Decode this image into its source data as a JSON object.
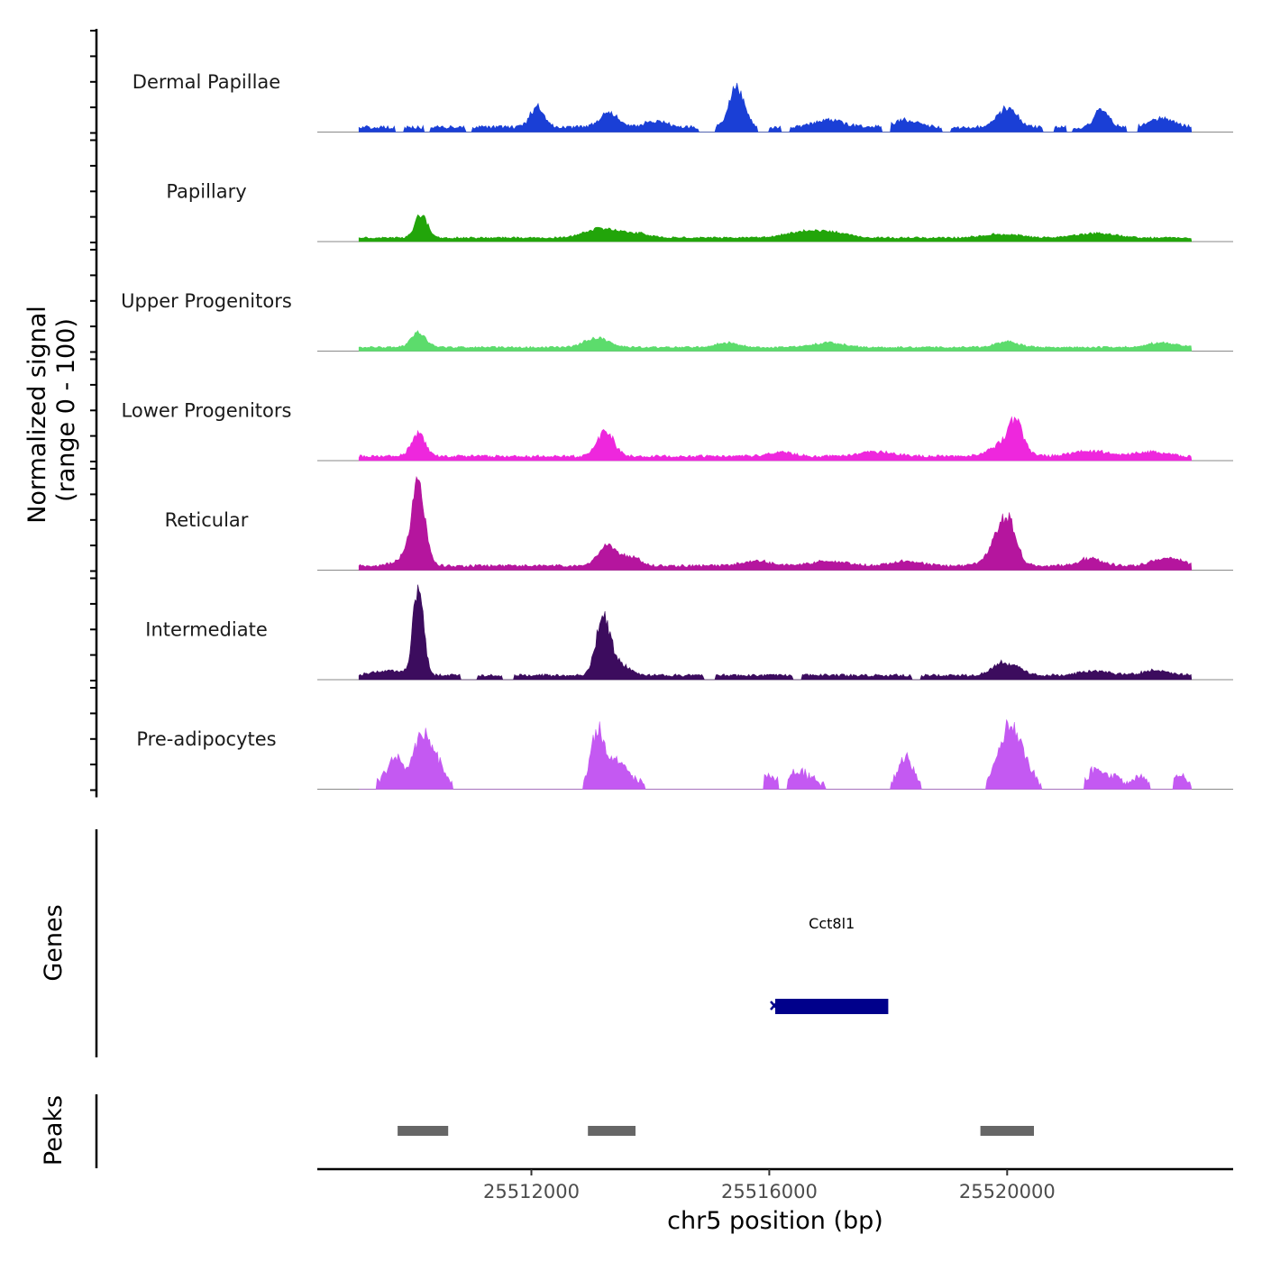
{
  "chart_data": {
    "type": "area",
    "title": "",
    "region": {
      "chromosome": "chr5",
      "start": 25508400,
      "end": 25523800
    },
    "coverage": {
      "ylabel_line1": "Normalized signal",
      "ylabel_line2": "(range 0 - 100)",
      "ylim": [
        0,
        100
      ],
      "x_start": 25509100,
      "x_end": 25523100,
      "tracks": [
        {
          "name": "Dermal Papillae",
          "color": "#1A3FD6",
          "peaks": [
            [
              25512100,
              22,
              120
            ],
            [
              25513300,
              16,
              150
            ],
            [
              25515450,
              42,
              130
            ],
            [
              25520000,
              22,
              160
            ],
            [
              25521600,
              20,
              120
            ],
            [
              25522600,
              10,
              200
            ],
            [
              25517000,
              8,
              250
            ],
            [
              25518300,
              8,
              200
            ],
            [
              25514100,
              6,
              200
            ]
          ],
          "baseline": 3,
          "noise": 4,
          "gaps": [
            [
              25509700,
              25509850
            ],
            [
              25510200,
              25510300
            ],
            [
              25510900,
              25511000
            ],
            [
              25514800,
              25515100
            ],
            [
              25515800,
              25516000
            ],
            [
              25516200,
              25516350
            ],
            [
              25517900,
              25518050
            ],
            [
              25518900,
              25519050
            ],
            [
              25520600,
              25520800
            ],
            [
              25521000,
              25521100
            ],
            [
              25522000,
              25522200
            ]
          ]
        },
        {
          "name": "Papillary",
          "color": "#22A50A",
          "peaks": [
            [
              25510150,
              26,
              100
            ],
            [
              25513150,
              10,
              250
            ],
            [
              25513700,
              5,
              250
            ],
            [
              25516500,
              5,
              300
            ],
            [
              25517000,
              6,
              300
            ],
            [
              25519900,
              4,
              300
            ],
            [
              25521500,
              5,
              300
            ]
          ],
          "baseline": 3,
          "noise": 2,
          "gaps": []
        },
        {
          "name": "Upper Progenitors",
          "color": "#5CDC6C",
          "peaks": [
            [
              25510100,
              16,
              120
            ],
            [
              25513100,
              10,
              200
            ],
            [
              25515300,
              5,
              200
            ],
            [
              25517000,
              5,
              250
            ],
            [
              25520000,
              6,
              200
            ],
            [
              25522600,
              5,
              250
            ]
          ],
          "baseline": 3,
          "noise": 2,
          "gaps": []
        },
        {
          "name": "Lower Progenitors",
          "color": "#EE27DD",
          "peaks": [
            [
              25510100,
              24,
              120
            ],
            [
              25513250,
              26,
              140
            ],
            [
              25516200,
              5,
              200
            ],
            [
              25517800,
              5,
              300
            ],
            [
              25520000,
              16,
              250
            ],
            [
              25520150,
              30,
              100
            ],
            [
              25521400,
              6,
              300
            ],
            [
              25522400,
              5,
              250
            ]
          ],
          "baseline": 3,
          "noise": 3,
          "gaps": []
        },
        {
          "name": "Reticular",
          "color": "#B5159E",
          "peaks": [
            [
              25510100,
              85,
              110
            ],
            [
              25509950,
              10,
              200
            ],
            [
              25513300,
              22,
              170
            ],
            [
              25513700,
              8,
              150
            ],
            [
              25520000,
              45,
              150
            ],
            [
              25519800,
              15,
              180
            ],
            [
              25521400,
              8,
              200
            ],
            [
              25522700,
              8,
              250
            ],
            [
              25515800,
              5,
              250
            ],
            [
              25517000,
              5,
              300
            ],
            [
              25518300,
              5,
              250
            ]
          ],
          "baseline": 3,
          "noise": 3,
          "gaps": []
        },
        {
          "name": "Intermediate",
          "color": "#3C0C5E",
          "peaks": [
            [
              25510100,
              100,
              85
            ],
            [
              25513200,
              56,
              110
            ],
            [
              25513400,
              15,
              200
            ],
            [
              25519900,
              12,
              170
            ],
            [
              25520200,
              6,
              150
            ],
            [
              25521500,
              5,
              250
            ],
            [
              25522500,
              5,
              250
            ],
            [
              25509600,
              5,
              250
            ]
          ],
          "baseline": 3,
          "noise": 3,
          "gaps": [
            [
              25510800,
              25511100
            ],
            [
              25511500,
              25511700
            ],
            [
              25514900,
              25515100
            ],
            [
              25516400,
              25516550
            ],
            [
              25518400,
              25518550
            ]
          ]
        },
        {
          "name": "Pre-adipocytes",
          "color": "#C459F2",
          "peaks": [
            [
              25509700,
              30,
              140
            ],
            [
              25510150,
              55,
              130
            ],
            [
              25510400,
              24,
              120
            ],
            [
              25513100,
              55,
              100
            ],
            [
              25513350,
              24,
              160
            ],
            [
              25513600,
              12,
              140
            ],
            [
              25515950,
              12,
              100
            ],
            [
              25516500,
              15,
              200
            ],
            [
              25518300,
              30,
              120
            ],
            [
              25520000,
              55,
              160
            ],
            [
              25520250,
              25,
              150
            ],
            [
              25521500,
              18,
              120
            ],
            [
              25521800,
              10,
              100
            ],
            [
              25522200,
              10,
              100
            ],
            [
              25522900,
              12,
              100
            ]
          ],
          "baseline": 0,
          "noise": 8,
          "gaps": [
            [
              25510800,
              25511500
            ],
            [
              25511800,
              25512800
            ],
            [
              25514300,
              25515900
            ],
            [
              25516150,
              25516300
            ],
            [
              25517050,
              25517900
            ],
            [
              25518550,
              25519600
            ],
            [
              25520650,
              25520850
            ],
            [
              25521000,
              25521300
            ],
            [
              25522400,
              25522800
            ]
          ]
        }
      ]
    },
    "genes": {
      "label": "Genes",
      "items": [
        {
          "name": "Cct8l1",
          "start": 25516100,
          "end": 25518000,
          "color": "#00008B"
        }
      ]
    },
    "peaks_track": {
      "label": "Peaks",
      "color": "#666666",
      "regions": [
        [
          25509750,
          25510600
        ],
        [
          25512950,
          25513750
        ],
        [
          25519550,
          25520450
        ]
      ]
    },
    "x_axis": {
      "xlabel": "chr5 position (bp)",
      "ticks": [
        25512000,
        25516000,
        25520000
      ],
      "tick_labels": [
        "25512000",
        "25516000",
        "25520000"
      ]
    }
  }
}
